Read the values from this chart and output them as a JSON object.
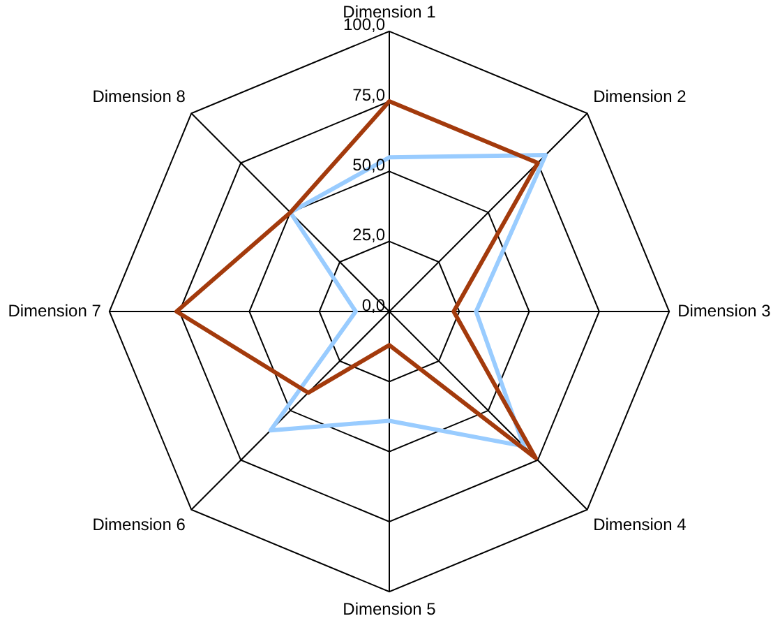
{
  "chart_data": {
    "type": "radar",
    "categories": [
      "Dimension 1",
      "Dimension 2",
      "Dimension 3",
      "Dimension 4",
      "Dimension 5",
      "Dimension 6",
      "Dimension 7",
      "Dimension 8"
    ],
    "series": [
      {
        "color": "#a33a0c",
        "values": [
          75,
          75,
          23,
          74,
          12,
          41,
          76,
          50
        ]
      },
      {
        "color": "#99ccff",
        "values": [
          55,
          79,
          31,
          68,
          39,
          60,
          12,
          50
        ]
      }
    ],
    "ylim": [
      0,
      100
    ],
    "yticks": [
      {
        "value": 0,
        "label": "0,0"
      },
      {
        "value": 25,
        "label": "25,0"
      },
      {
        "value": 50,
        "label": "50,0"
      },
      {
        "value": 75,
        "label": "75,0"
      },
      {
        "value": 100,
        "label": "100,0"
      }
    ],
    "grid": true,
    "legend": false,
    "marker": "none",
    "line_style": "solid"
  }
}
